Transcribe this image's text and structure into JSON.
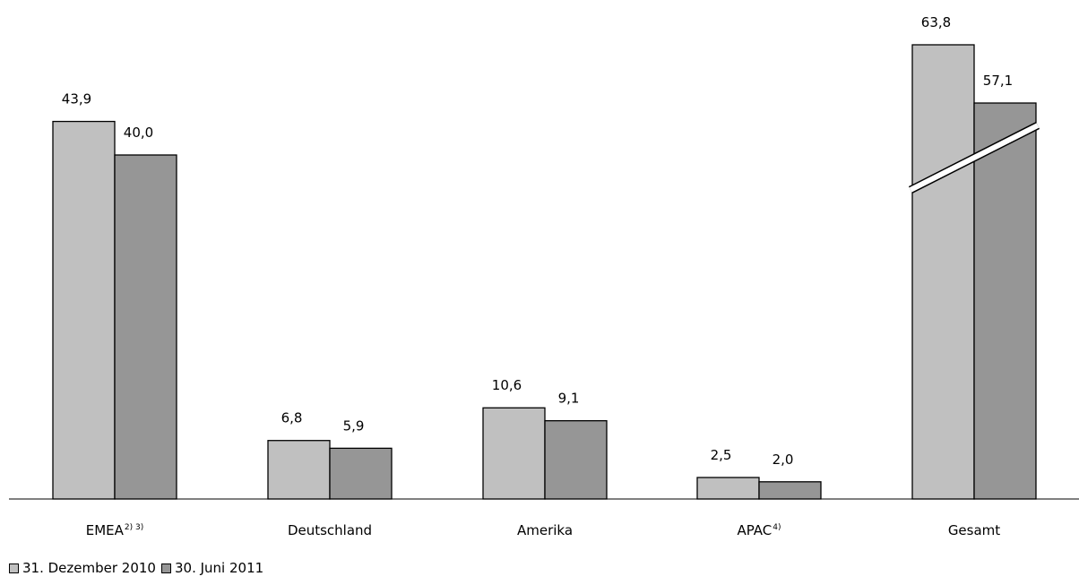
{
  "chart_data": {
    "type": "bar",
    "categories": [
      "EMEA",
      "Deutschland",
      "Amerika",
      "APAC",
      "Gesamt"
    ],
    "category_footnotes": [
      "2) 3)",
      "",
      "",
      "4)",
      ""
    ],
    "series": [
      {
        "name": "31. Dezember 2010",
        "values": [
          43.9,
          6.8,
          10.6,
          2.5,
          63.8
        ]
      },
      {
        "name": "30. Juni 2011",
        "values": [
          40.0,
          5.9,
          9.1,
          2.0,
          57.1
        ]
      }
    ],
    "value_labels": [
      [
        "43,9",
        "6,8",
        "10,6",
        "2,5",
        "63,8"
      ],
      [
        "40,0",
        "5,9",
        "9,1",
        "2,0",
        "57,1"
      ]
    ],
    "broken_axis_category": "Gesamt",
    "colors": [
      "#c0c0c0",
      "#969696"
    ],
    "legend_position": "bottom-left",
    "grid": false,
    "title": "",
    "xlabel": "",
    "ylabel": ""
  }
}
